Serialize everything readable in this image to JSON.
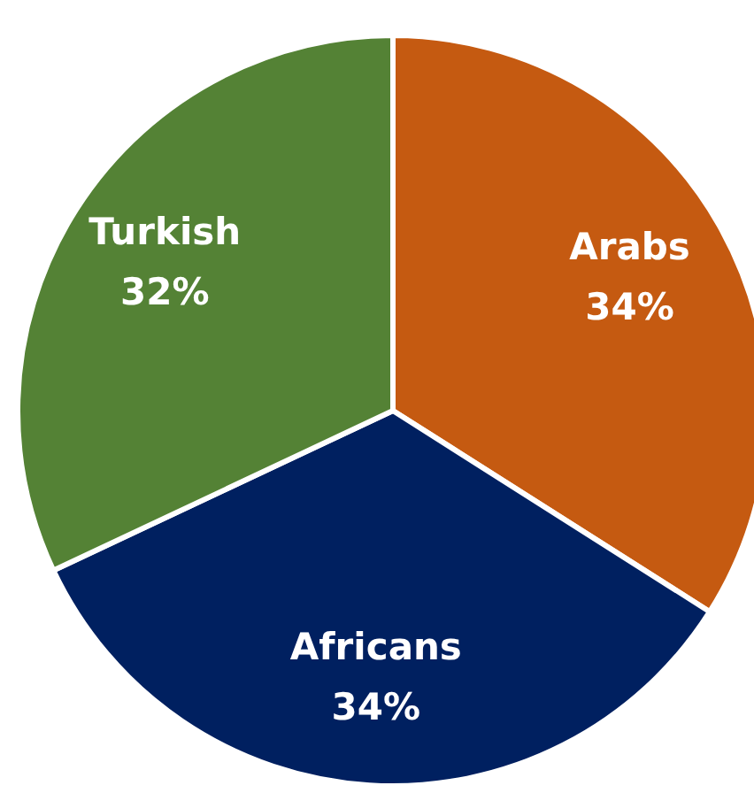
{
  "chart_data": {
    "type": "pie",
    "categories": [
      "Arabs",
      "Africans",
      "Turkish"
    ],
    "values": [
      34,
      34,
      32
    ],
    "colors": [
      "#c55a11",
      "#002060",
      "#548235"
    ],
    "value_labels": [
      "34%",
      "34%",
      "32%"
    ]
  }
}
